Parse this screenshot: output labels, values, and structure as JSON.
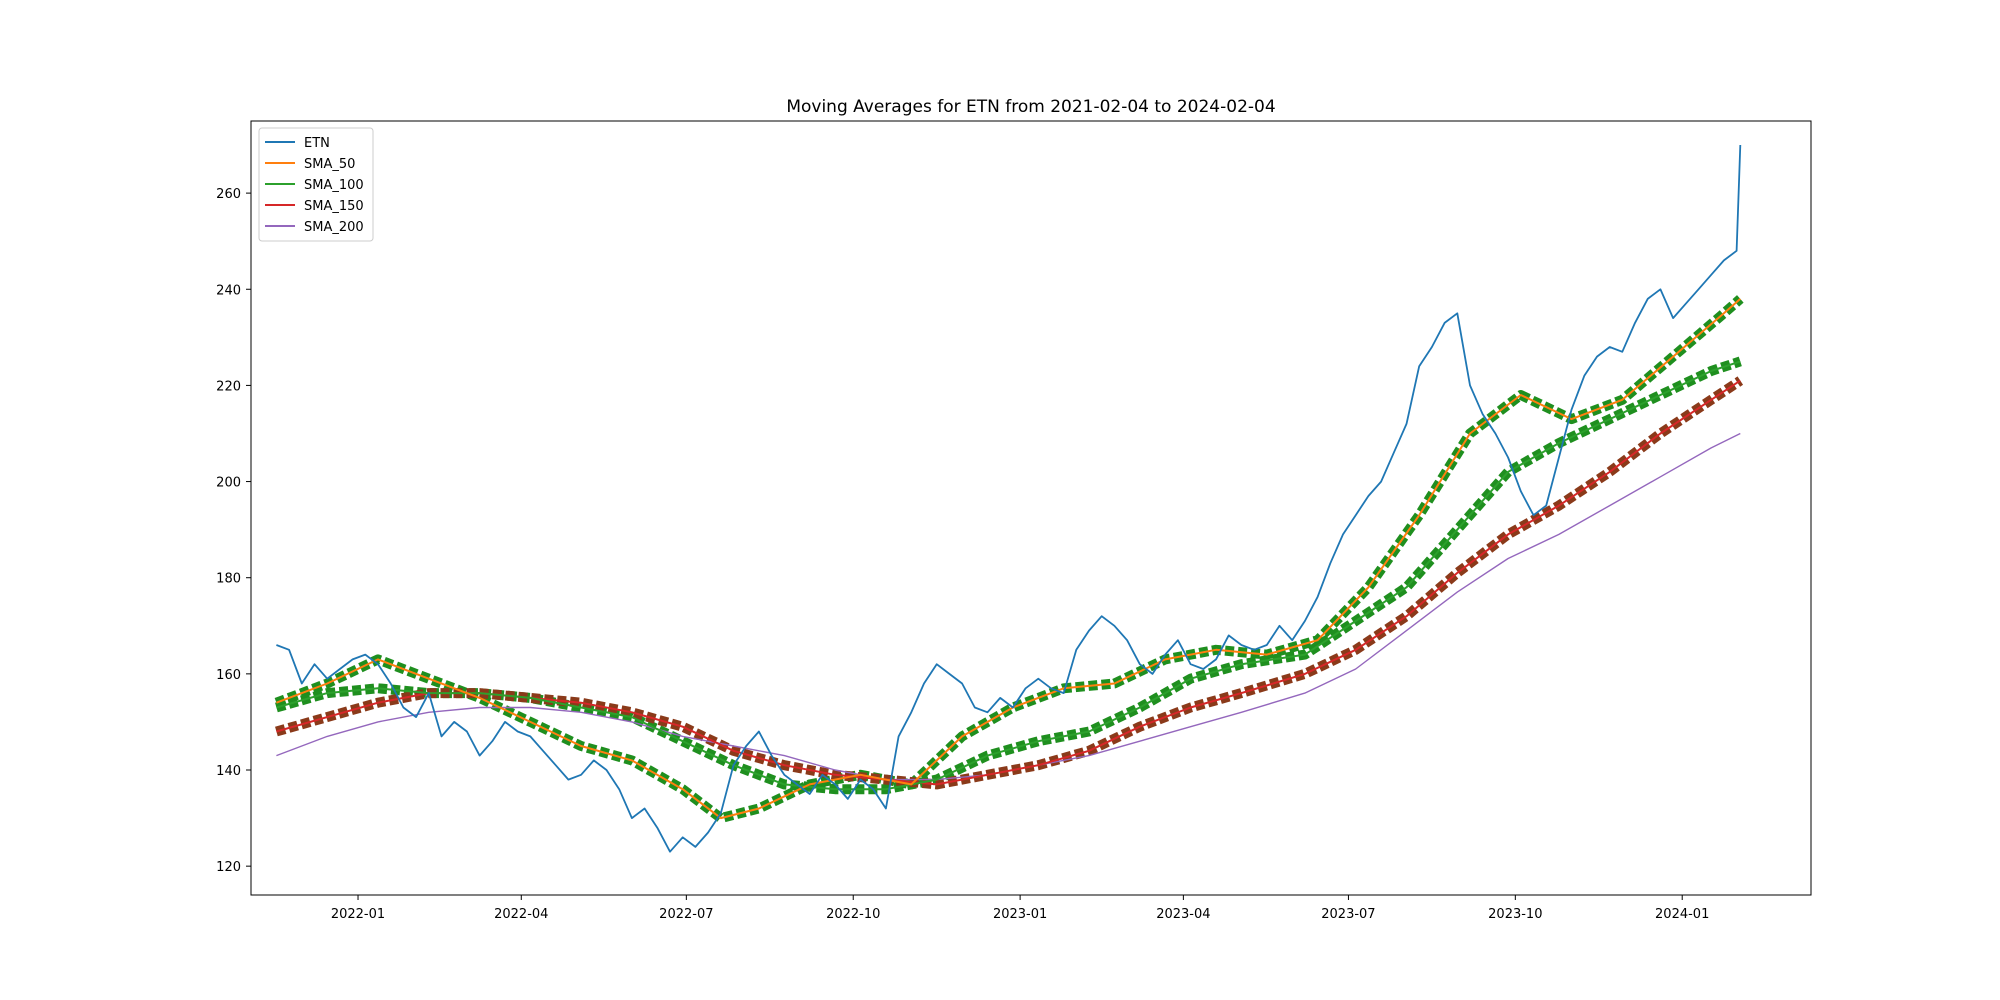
{
  "chart_data": {
    "type": "line",
    "title": "Moving Averages for ETN from 2021-02-04 to 2024-02-04",
    "xlabel": "",
    "ylabel": "",
    "x_ticks": [
      "2022-01",
      "2022-04",
      "2022-07",
      "2022-10",
      "2023-01",
      "2023-04",
      "2023-07",
      "2023-10",
      "2024-01"
    ],
    "y_ticks": [
      120,
      140,
      160,
      180,
      200,
      220,
      240,
      260
    ],
    "xlim": [
      "2021-11-03",
      "2024-03-12"
    ],
    "ylim": [
      114,
      275
    ],
    "legend_position": "upper-left",
    "grid": false,
    "series": [
      {
        "name": "ETN",
        "color": "#1f77b4",
        "x": [
          "2021-11-17",
          "2021-11-24",
          "2021-12-01",
          "2021-12-08",
          "2021-12-15",
          "2021-12-22",
          "2021-12-29",
          "2022-01-05",
          "2022-01-12",
          "2022-01-19",
          "2022-01-26",
          "2022-02-02",
          "2022-02-09",
          "2022-02-16",
          "2022-02-23",
          "2022-03-02",
          "2022-03-09",
          "2022-03-16",
          "2022-03-23",
          "2022-03-30",
          "2022-04-06",
          "2022-04-13",
          "2022-04-20",
          "2022-04-27",
          "2022-05-04",
          "2022-05-11",
          "2022-05-18",
          "2022-05-25",
          "2022-06-01",
          "2022-06-08",
          "2022-06-15",
          "2022-06-22",
          "2022-06-29",
          "2022-07-06",
          "2022-07-13",
          "2022-07-20",
          "2022-07-27",
          "2022-08-03",
          "2022-08-10",
          "2022-08-17",
          "2022-08-24",
          "2022-08-31",
          "2022-09-07",
          "2022-09-14",
          "2022-09-21",
          "2022-09-28",
          "2022-10-05",
          "2022-10-12",
          "2022-10-19",
          "2022-10-26",
          "2022-11-02",
          "2022-11-09",
          "2022-11-16",
          "2022-11-23",
          "2022-11-30",
          "2022-12-07",
          "2022-12-14",
          "2022-12-21",
          "2022-12-28",
          "2023-01-04",
          "2023-01-11",
          "2023-01-18",
          "2023-01-25",
          "2023-02-01",
          "2023-02-08",
          "2023-02-15",
          "2023-02-22",
          "2023-03-01",
          "2023-03-08",
          "2023-03-15",
          "2023-03-22",
          "2023-03-29",
          "2023-04-05",
          "2023-04-12",
          "2023-04-19",
          "2023-04-26",
          "2023-05-03",
          "2023-05-10",
          "2023-05-17",
          "2023-05-24",
          "2023-05-31",
          "2023-06-07",
          "2023-06-14",
          "2023-06-21",
          "2023-06-28",
          "2023-07-05",
          "2023-07-12",
          "2023-07-19",
          "2023-07-26",
          "2023-08-02",
          "2023-08-09",
          "2023-08-16",
          "2023-08-23",
          "2023-08-30",
          "2023-09-06",
          "2023-09-13",
          "2023-09-20",
          "2023-09-27",
          "2023-10-04",
          "2023-10-11",
          "2023-10-18",
          "2023-10-25",
          "2023-11-01",
          "2023-11-08",
          "2023-11-15",
          "2023-11-22",
          "2023-11-29",
          "2023-12-06",
          "2023-12-13",
          "2023-12-20",
          "2023-12-27",
          "2024-01-03",
          "2024-01-10",
          "2024-01-17",
          "2024-01-24",
          "2024-01-31",
          "2024-02-02"
        ],
        "values": [
          166,
          165,
          158,
          162,
          159,
          161,
          163,
          164,
          162,
          158,
          153,
          151,
          156,
          147,
          150,
          148,
          143,
          146,
          150,
          148,
          147,
          144,
          141,
          138,
          139,
          142,
          140,
          136,
          130,
          132,
          128,
          123,
          126,
          124,
          127,
          131,
          141,
          145,
          148,
          143,
          139,
          137,
          135,
          139,
          137,
          134,
          138,
          136,
          132,
          147,
          152,
          158,
          162,
          160,
          158,
          153,
          152,
          155,
          153,
          157,
          159,
          157,
          156,
          165,
          169,
          172,
          170,
          167,
          162,
          160,
          164,
          167,
          162,
          161,
          163,
          168,
          166,
          165,
          166,
          170,
          167,
          171,
          176,
          183,
          189,
          193,
          197,
          200,
          206,
          212,
          224,
          228,
          233,
          235,
          220,
          214,
          210,
          205,
          198,
          193,
          195,
          205,
          215,
          222,
          226,
          228,
          227,
          233,
          238,
          240,
          234,
          237,
          240,
          243,
          246,
          248,
          270
        ]
      },
      {
        "name": "SMA_50",
        "color": "#ff7f0e",
        "x": [
          "2021-11-17",
          "2021-12-15",
          "2022-01-12",
          "2022-02-09",
          "2022-03-09",
          "2022-04-06",
          "2022-05-04",
          "2022-06-01",
          "2022-06-29",
          "2022-07-20",
          "2022-08-10",
          "2022-09-07",
          "2022-10-05",
          "2022-11-02",
          "2022-11-30",
          "2022-12-28",
          "2023-01-25",
          "2023-02-22",
          "2023-03-22",
          "2023-04-19",
          "2023-05-17",
          "2023-06-14",
          "2023-07-12",
          "2023-08-09",
          "2023-09-06",
          "2023-10-04",
          "2023-11-01",
          "2023-11-29",
          "2023-12-27",
          "2024-01-24",
          "2024-02-02"
        ],
        "values": [
          154,
          158,
          163,
          159,
          155,
          150,
          145,
          142,
          136,
          130,
          132,
          137,
          139,
          137,
          147,
          153,
          157,
          158,
          163,
          165,
          164,
          167,
          178,
          193,
          210,
          218,
          213,
          217,
          226,
          235,
          238
        ]
      },
      {
        "name": "SMA_100",
        "color": "#2ca02c",
        "x": [
          "2021-11-17",
          "2021-12-15",
          "2022-01-12",
          "2022-02-09",
          "2022-03-09",
          "2022-04-06",
          "2022-05-04",
          "2022-06-01",
          "2022-06-29",
          "2022-07-27",
          "2022-08-24",
          "2022-09-21",
          "2022-10-19",
          "2022-11-16",
          "2022-12-14",
          "2023-01-11",
          "2023-02-08",
          "2023-03-08",
          "2023-04-05",
          "2023-05-03",
          "2023-06-07",
          "2023-07-05",
          "2023-08-02",
          "2023-08-30",
          "2023-09-27",
          "2023-10-25",
          "2023-11-22",
          "2023-12-20",
          "2024-01-17",
          "2024-02-02"
        ],
        "values": [
          153,
          156,
          157,
          156,
          156,
          155,
          153,
          151,
          146,
          141,
          137,
          136,
          136,
          138,
          143,
          146,
          148,
          153,
          159,
          162,
          164,
          171,
          178,
          190,
          202,
          208,
          213,
          218,
          223,
          225
        ]
      },
      {
        "name": "SMA_150",
        "color": "#d62728",
        "x": [
          "2021-11-17",
          "2021-12-15",
          "2022-01-12",
          "2022-02-09",
          "2022-03-09",
          "2022-04-06",
          "2022-05-04",
          "2022-06-01",
          "2022-06-29",
          "2022-07-27",
          "2022-08-24",
          "2022-09-21",
          "2022-10-19",
          "2022-11-16",
          "2022-12-14",
          "2023-01-11",
          "2023-02-08",
          "2023-03-08",
          "2023-04-05",
          "2023-05-03",
          "2023-06-07",
          "2023-07-05",
          "2023-08-02",
          "2023-08-30",
          "2023-09-27",
          "2023-10-25",
          "2023-11-22",
          "2023-12-20",
          "2024-01-17",
          "2024-02-02"
        ],
        "values": [
          148,
          151,
          154,
          156,
          156,
          155,
          154,
          152,
          149,
          144,
          141,
          139,
          138,
          137,
          139,
          141,
          144,
          149,
          153,
          156,
          160,
          165,
          172,
          181,
          189,
          195,
          202,
          210,
          217,
          221
        ]
      },
      {
        "name": "SMA_200",
        "color": "#9467bd",
        "x": [
          "2021-11-17",
          "2021-12-15",
          "2022-01-12",
          "2022-02-09",
          "2022-03-09",
          "2022-04-06",
          "2022-05-04",
          "2022-06-01",
          "2022-06-29",
          "2022-07-27",
          "2022-08-24",
          "2022-09-21",
          "2022-10-19",
          "2022-11-16",
          "2022-12-14",
          "2023-01-11",
          "2023-02-08",
          "2023-03-08",
          "2023-04-05",
          "2023-05-03",
          "2023-06-07",
          "2023-07-05",
          "2023-08-02",
          "2023-08-30",
          "2023-09-27",
          "2023-10-25",
          "2023-11-22",
          "2023-12-20",
          "2024-01-17",
          "2024-02-02"
        ],
        "values": [
          143,
          147,
          150,
          152,
          153,
          153,
          152,
          150,
          147,
          145,
          143,
          140,
          138,
          138,
          139,
          141,
          143,
          146,
          149,
          152,
          156,
          161,
          169,
          177,
          184,
          189,
          195,
          201,
          207,
          210
        ]
      }
    ]
  }
}
